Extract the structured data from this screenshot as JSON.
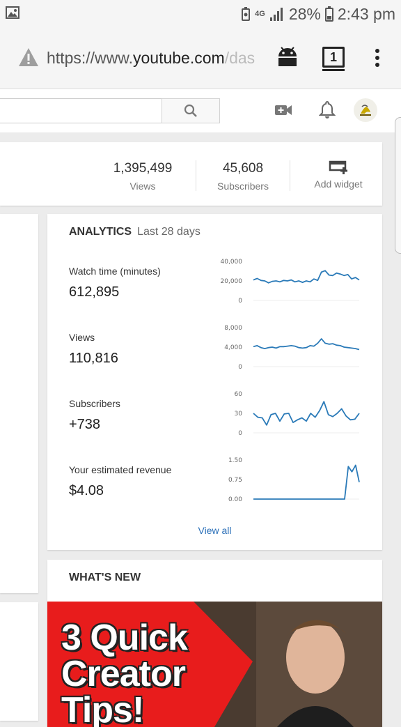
{
  "status": {
    "network": "4G",
    "battery": "28%",
    "time": "2:43 pm"
  },
  "browser": {
    "url_scheme": "https://www.",
    "url_domain": "youtube.com",
    "url_path": "/das",
    "tab_count": "1"
  },
  "channel_stats": {
    "views_value": "1,395,499",
    "views_label": "Views",
    "subs_value": "45,608",
    "subs_label": "Subscribers",
    "add_widget_label": "Add widget"
  },
  "analytics": {
    "title": "ANALYTICS",
    "period": "Last 28 days",
    "metrics": [
      {
        "label": "Watch time (minutes)",
        "value": "612,895",
        "ticks": [
          "40,000",
          "20,000",
          "0"
        ]
      },
      {
        "label": "Views",
        "value": "110,816",
        "ticks": [
          "8,000",
          "4,000",
          "0"
        ]
      },
      {
        "label": "Subscribers",
        "value": "+738",
        "ticks": [
          "60",
          "30",
          "0"
        ]
      },
      {
        "label": "Your estimated revenue",
        "value": "$4.08",
        "ticks": [
          "1.50",
          "0.75",
          "0.00"
        ]
      }
    ],
    "view_all": "View all",
    "line_color": "#2a7ab8"
  },
  "chart_data": [
    {
      "type": "line",
      "ylabel": "",
      "ylim": [
        0,
        40000
      ],
      "values": [
        21000,
        22500,
        20500,
        20000,
        18000,
        19500,
        20000,
        19000,
        20500,
        20000,
        21000,
        19000,
        20000,
        18500,
        20000,
        19000,
        22000,
        20500,
        29000,
        30500,
        26000,
        25500,
        28000,
        27000,
        25500,
        26500,
        22000,
        23500,
        21000
      ]
    },
    {
      "type": "line",
      "ylabel": "",
      "ylim": [
        0,
        8000
      ],
      "values": [
        4100,
        4300,
        3900,
        3700,
        3900,
        4000,
        3800,
        4100,
        4100,
        4200,
        4300,
        4200,
        3900,
        3800,
        3900,
        4300,
        4200,
        4800,
        5700,
        4800,
        4600,
        4700,
        4400,
        4300,
        4000,
        3900,
        3800,
        3700,
        3500
      ]
    },
    {
      "type": "line",
      "ylabel": "",
      "ylim": [
        0,
        60
      ],
      "values": [
        30,
        24,
        23,
        12,
        28,
        30,
        18,
        29,
        30,
        16,
        20,
        23,
        18,
        30,
        24,
        34,
        48,
        28,
        25,
        30,
        37,
        26,
        20,
        21,
        30
      ]
    },
    {
      "type": "line",
      "ylabel": "",
      "ylim": [
        0,
        1.5
      ],
      "values": [
        0,
        0,
        0,
        0,
        0,
        0,
        0,
        0,
        0,
        0,
        0,
        0,
        0,
        0,
        0,
        0,
        0,
        0,
        0,
        0,
        0,
        0,
        0,
        0,
        0,
        0,
        1.25,
        1.05,
        1.3,
        0.65
      ]
    }
  ],
  "whats_new": {
    "title": "WHAT'S NEW",
    "thumb_line1": "3 Quick",
    "thumb_line2": "Creator",
    "thumb_line3": "Tips!"
  }
}
